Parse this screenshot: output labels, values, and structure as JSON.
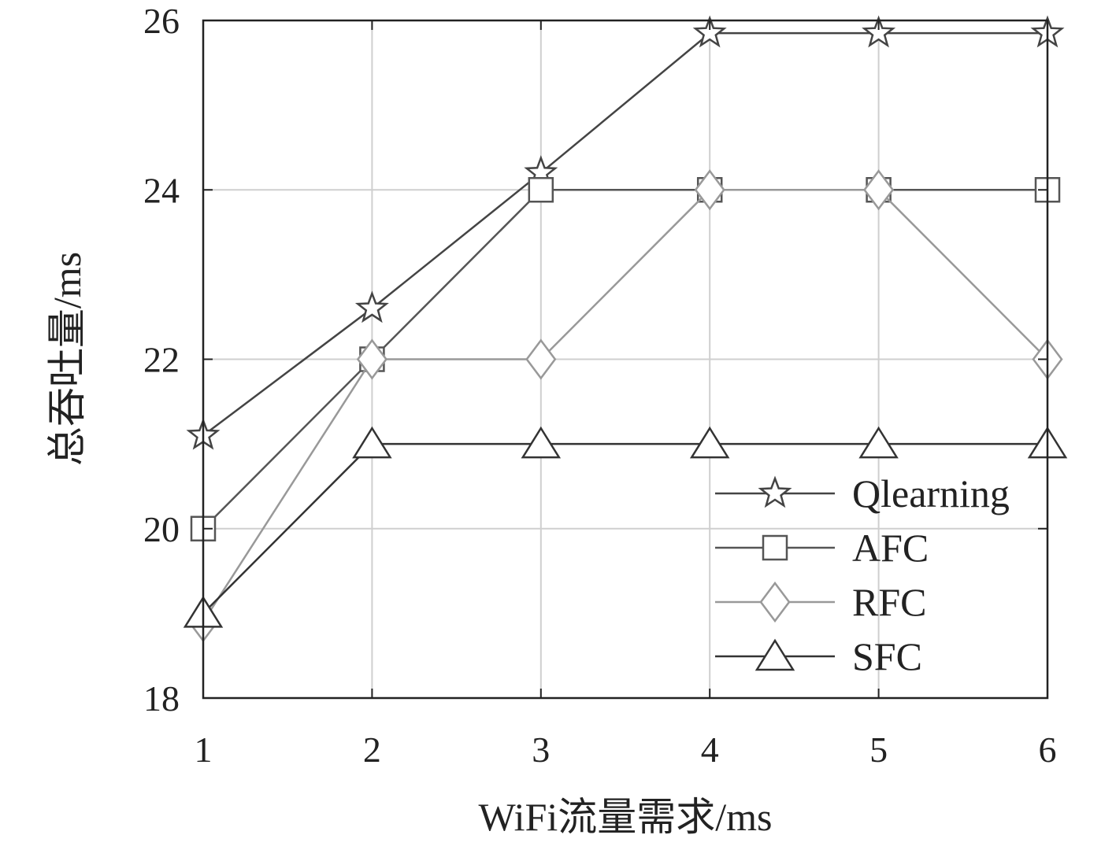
{
  "chart_data": {
    "type": "line",
    "title": "",
    "xlabel": "WiFi流量需求/ms",
    "ylabel": "总吞吐量/ms",
    "x": [
      1,
      2,
      3,
      4,
      5,
      6
    ],
    "xlim": [
      1,
      6
    ],
    "ylim": [
      18,
      26
    ],
    "xticks": [
      "1",
      "2",
      "3",
      "4",
      "5",
      "6"
    ],
    "yticks": [
      "18",
      "20",
      "22",
      "24",
      "26"
    ],
    "grid": true,
    "legend_position": "bottom-right",
    "series": [
      {
        "name": "Qlearning",
        "marker": "star",
        "color": "#444444",
        "values": [
          21.1,
          22.6,
          24.2,
          25.85,
          25.85,
          25.85
        ]
      },
      {
        "name": "AFC",
        "marker": "square",
        "color": "#555555",
        "values": [
          20,
          22,
          24,
          24,
          24,
          24
        ]
      },
      {
        "name": "RFC",
        "marker": "diamond",
        "color": "#999999",
        "values": [
          18.9,
          22,
          22,
          24,
          24,
          22
        ]
      },
      {
        "name": "SFC",
        "marker": "triangle",
        "color": "#333333",
        "values": [
          19,
          21,
          21,
          21,
          21,
          21
        ]
      }
    ]
  }
}
